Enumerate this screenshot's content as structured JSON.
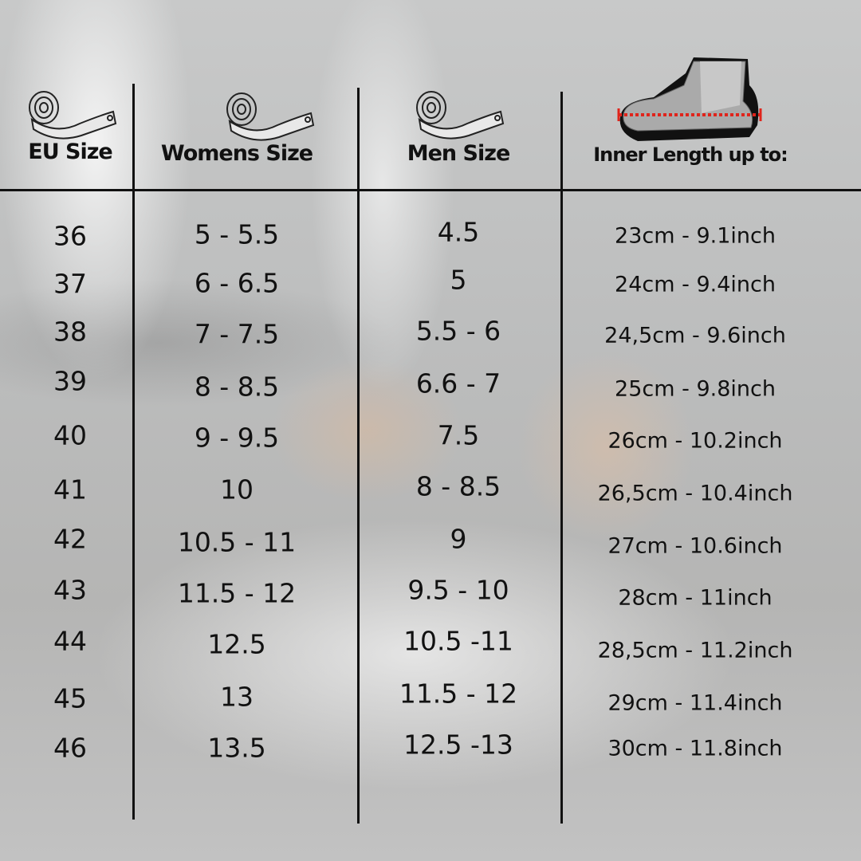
{
  "headers": {
    "eu": "EU Size",
    "womens": "Womens Size",
    "men": "Men Size",
    "inner": "Inner Length up to:"
  },
  "icons": {
    "measure": "tape-measure-icon",
    "foot": "foot-in-shoe-icon"
  },
  "accent_color": "#e0241b",
  "rows": [
    {
      "eu": "36",
      "womens": "5 - 5.5",
      "men": "4.5",
      "inner": "23cm - 9.1inch"
    },
    {
      "eu": "37",
      "womens": "6 - 6.5",
      "men": "5",
      "inner": "24cm - 9.4inch"
    },
    {
      "eu": "38",
      "womens": "7 - 7.5",
      "men": "5.5 - 6",
      "inner": "24,5cm - 9.6inch"
    },
    {
      "eu": "39",
      "womens": "8 - 8.5",
      "men": "6.6 - 7",
      "inner": "25cm - 9.8inch"
    },
    {
      "eu": "40",
      "womens": "9 - 9.5",
      "men": "7.5",
      "inner": "26cm - 10.2inch"
    },
    {
      "eu": "41",
      "womens": "10",
      "men": "8 - 8.5",
      "inner": "26,5cm - 10.4inch"
    },
    {
      "eu": "42",
      "womens": "10.5 - 11",
      "men": "9",
      "inner": "27cm - 10.6inch"
    },
    {
      "eu": "43",
      "womens": "11.5 - 12",
      "men": "9.5 - 10",
      "inner": "28cm - 11inch"
    },
    {
      "eu": "44",
      "womens": "12.5",
      "men": "10.5 -11",
      "inner": "28,5cm - 11.2inch"
    },
    {
      "eu": "45",
      "womens": "13",
      "men": "11.5 - 12",
      "inner": "29cm - 11.4inch"
    },
    {
      "eu": "46",
      "womens": "13.5",
      "men": "12.5 -13",
      "inner": "30cm - 11.8inch"
    }
  ]
}
